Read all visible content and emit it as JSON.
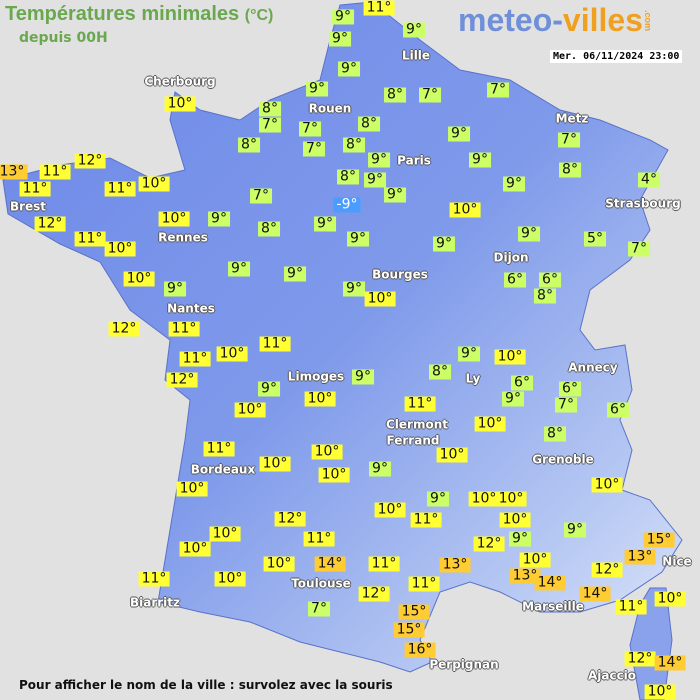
{
  "header": {
    "title": "Températures minimales",
    "unit": "(°C)",
    "subtitle": "depuis 00H",
    "logo_part1": "meteo-",
    "logo_part2": "villes",
    ".com": ".com",
    "logo_com": ".com",
    "date": "Mer. 06/11/2024 23:00"
  },
  "footer": "Pour afficher le nom de la ville : survolez avec la souris",
  "colors": {
    "sea": "#e2e1e1",
    "land": "#6f8fe6",
    "cold": "#ccff66",
    "mild": "#ffff33",
    "warm": "#ffcc33",
    "highlight": "#4a9cff"
  },
  "cities": [
    "Cherbourg",
    "Rouen",
    "Lille",
    "Paris",
    "Metz",
    "Strasbourg",
    "Brest",
    "Rennes",
    "Nantes",
    "Bourges",
    "Dijon",
    "Limoges",
    "Clermont",
    "Ferrand",
    "Ly",
    "Annecy",
    "Grenoble",
    "Bordeaux",
    "Toulouse",
    "Biarritz",
    "Marseille",
    "Nice",
    "Perpignan",
    "Ajaccio"
  ],
  "temperatures": [
    9,
    11,
    9,
    9,
    9,
    9,
    8,
    7,
    8,
    7,
    7,
    8,
    8,
    8,
    7,
    7,
    9,
    9,
    9,
    8,
    9,
    9,
    9,
    7,
    8,
    4,
    10,
    -9,
    7,
    9,
    8,
    9,
    9,
    9,
    9,
    5,
    7,
    6,
    6,
    8,
    9,
    10,
    9,
    9,
    10,
    9,
    12,
    11,
    11,
    12,
    10,
    11,
    9,
    10,
    10,
    9,
    8,
    9,
    10,
    6,
    9,
    6,
    7,
    6,
    11,
    10,
    8,
    10,
    9,
    10,
    10,
    10,
    11,
    10,
    10,
    9,
    11,
    10,
    10,
    10,
    9,
    12,
    9,
    10,
    15,
    13,
    10,
    13,
    14,
    12,
    14,
    11,
    10,
    13,
    11,
    11,
    12,
    15,
    15,
    16,
    12,
    11,
    14,
    10,
    10,
    10,
    10,
    11,
    7,
    12,
    14,
    10,
    13,
    11,
    11,
    12,
    11,
    10,
    12,
    11,
    10,
    10,
    10
  ],
  "highlighted_index": 27
}
